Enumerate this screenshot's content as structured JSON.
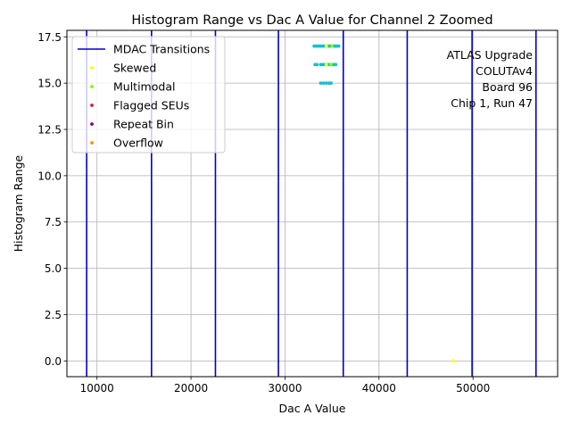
{
  "chart_data": {
    "type": "scatter",
    "title": "Histogram Range vs Dac A Value for Channel 2 Zoomed",
    "xlabel": "Dac A Value",
    "ylabel": "Histogram Range",
    "xlim": [
      6800,
      59000
    ],
    "ylim": [
      -0.85,
      17.85
    ],
    "grid": true,
    "legend_position": "top-left",
    "x_ticks": [
      {
        "value": 10000,
        "label": "10000"
      },
      {
        "value": 20000,
        "label": "20000"
      },
      {
        "value": 30000,
        "label": "30000"
      },
      {
        "value": 40000,
        "label": "40000"
      },
      {
        "value": 50000,
        "label": "50000"
      }
    ],
    "y_ticks": [
      {
        "value": 0,
        "label": "0.0"
      },
      {
        "value": 2.5,
        "label": "2.5"
      },
      {
        "value": 5,
        "label": "5.0"
      },
      {
        "value": 7.5,
        "label": "7.5"
      },
      {
        "value": 10,
        "label": "10.0"
      },
      {
        "value": 12.5,
        "label": "12.5"
      },
      {
        "value": 15,
        "label": "15.0"
      },
      {
        "value": 17.5,
        "label": "17.5"
      }
    ],
    "mdac_transitions": {
      "name": "MDAC Transitions",
      "color": "#0000cc",
      "x": [
        8900,
        15800,
        22600,
        29300,
        36200,
        43000,
        49900,
        56700
      ]
    },
    "series": [
      {
        "name": "",
        "color": "#17becf",
        "points": [
          [
            33100,
            17
          ],
          [
            33300,
            17
          ],
          [
            33500,
            17
          ],
          [
            33700,
            17
          ],
          [
            33900,
            17
          ],
          [
            34100,
            17
          ],
          [
            34300,
            17
          ],
          [
            34500,
            17
          ],
          [
            34700,
            17
          ],
          [
            34900,
            17
          ],
          [
            35100,
            17
          ],
          [
            35300,
            17
          ],
          [
            35500,
            17
          ],
          [
            35700,
            17
          ],
          [
            33200,
            16
          ],
          [
            33400,
            16
          ],
          [
            33800,
            16
          ],
          [
            34000,
            16
          ],
          [
            34200,
            16
          ],
          [
            34600,
            16
          ],
          [
            34800,
            16
          ],
          [
            35000,
            16
          ],
          [
            35200,
            16
          ],
          [
            35400,
            16
          ],
          [
            33800,
            15
          ],
          [
            34100,
            15
          ],
          [
            34400,
            15
          ],
          [
            34700,
            15
          ],
          [
            34900,
            15
          ]
        ]
      },
      {
        "name": "Skewed",
        "color": "#ffff00",
        "points": [
          [
            34400,
            17
          ],
          [
            34400,
            16
          ],
          [
            47900,
            0
          ]
        ]
      },
      {
        "name": "Multimodal",
        "color": "#7fff00",
        "points": [
          [
            35000,
            17
          ],
          [
            34900,
            16
          ]
        ]
      },
      {
        "name": "Flagged SEUs",
        "color": "#dc143c",
        "points": []
      },
      {
        "name": "Repeat Bin",
        "color": "#800080",
        "points": []
      },
      {
        "name": "Overflow",
        "color": "#ff8c00",
        "points": []
      }
    ],
    "annotation": [
      "ATLAS Upgrade",
      "COLUTAv4",
      "Board 96",
      "Chip 1, Run 47"
    ]
  }
}
